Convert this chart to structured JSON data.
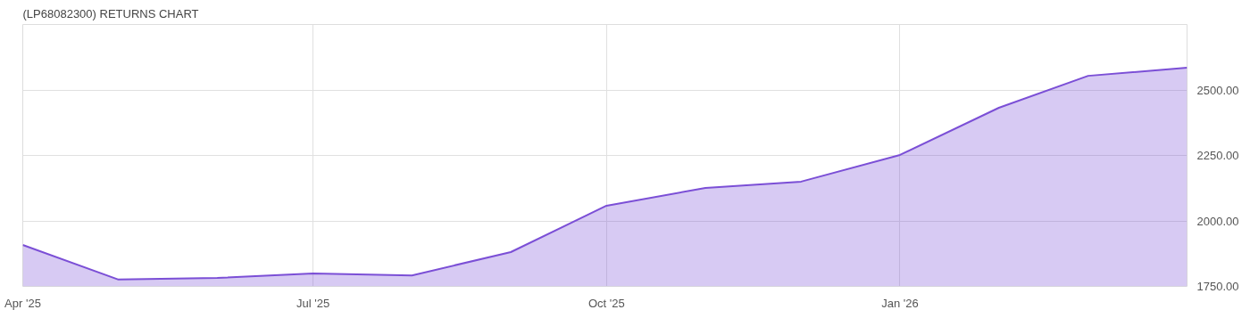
{
  "chart_data": {
    "type": "area",
    "title": "(LP68082300) RETURNS CHART",
    "x": [
      "2025-04-01",
      "2025-05-01",
      "2025-06-01",
      "2025-07-01",
      "2025-08-01",
      "2025-09-01",
      "2025-10-01",
      "2025-11-01",
      "2025-12-01",
      "2026-01-01",
      "2026-02-01",
      "2026-03-01",
      "2026-04-01"
    ],
    "series": [
      {
        "color": "#7b4fd6",
        "values": [
          1908,
          1776,
          1782,
          1799,
          1792,
          1881,
          2058,
          2126,
          2150,
          2252,
          2432,
          2554,
          2585
        ]
      }
    ],
    "xlim": [
      "2025-04-01",
      "2026-04-01"
    ],
    "xticks": [
      {
        "value": "2025-04-01",
        "label": "Apr '25"
      },
      {
        "value": "2025-07-01",
        "label": "Jul '25"
      },
      {
        "value": "2025-10-01",
        "label": "Oct '25"
      },
      {
        "value": "2026-01-01",
        "label": "Jan '26"
      }
    ],
    "ylim": [
      1750,
      2750
    ],
    "yticks": [
      {
        "value": 1750,
        "label": "1750.00"
      },
      {
        "value": 2000,
        "label": "2000.00"
      },
      {
        "value": 2250,
        "label": "2250.00"
      },
      {
        "value": 2500,
        "label": "2500.00"
      }
    ],
    "grid": true,
    "marker": "none",
    "line_style": "solid"
  }
}
